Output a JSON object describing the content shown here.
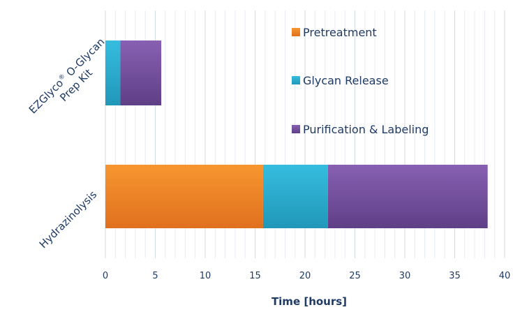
{
  "chart_data": {
    "type": "bar",
    "orientation": "horizontal",
    "stacked": true,
    "categories": [
      "Hydrazinolysis",
      "EZGlyco® O-Glycan Prep Kit"
    ],
    "category_lines": {
      "Hydrazinolysis": [
        "Hydrazinolysis"
      ],
      "EZGlyco® O-Glycan Prep Kit": [
        "EZGlyco",
        "®",
        " O-Glycan",
        "Prep Kit"
      ]
    },
    "series": [
      {
        "name": "Pretreatment",
        "values": [
          15.8,
          0
        ],
        "color": "#f28a2e"
      },
      {
        "name": "Glycan Release",
        "values": [
          6.5,
          1.5
        ],
        "color": "#2fb4d6"
      },
      {
        "name": "Purification & Labeling",
        "values": [
          16.0,
          4.1
        ],
        "color": "#7b55a5"
      }
    ],
    "xlabel": "Time [hours]",
    "xlim": [
      0,
      40
    ],
    "xticks": [
      0,
      5,
      10,
      15,
      20,
      25,
      30,
      35,
      40
    ],
    "minor_grid_step": 1,
    "grid": true,
    "legend": {
      "placement": "top-right"
    }
  }
}
